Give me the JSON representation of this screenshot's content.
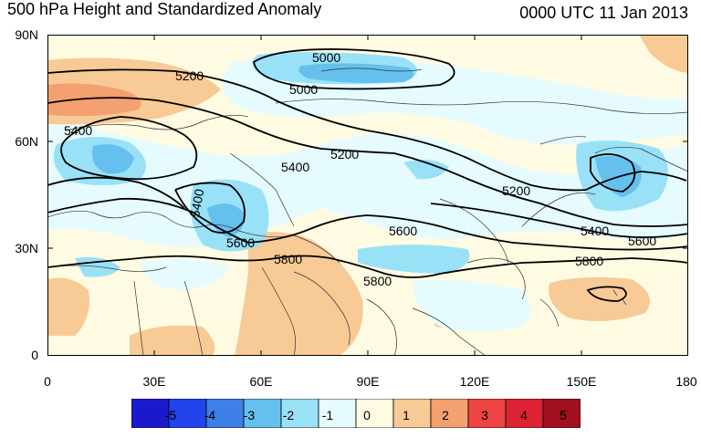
{
  "title_left": "500 hPa Height and Standardized Anomaly",
  "title_right": "0000 UTC 11 Jan 2013",
  "lat_labels": [
    "90N",
    "60N",
    "30N",
    "0"
  ],
  "lon_labels": [
    "0",
    "30E",
    "60E",
    "90E",
    "120E",
    "150E",
    "180"
  ],
  "contour_labels": [
    "5000",
    "5000",
    "5200",
    "5200",
    "5200",
    "5400",
    "5400",
    "5400",
    "5400",
    "5600",
    "5600",
    "5600",
    "5800",
    "5800",
    "5800"
  ],
  "colorbar": {
    "labels": [
      "-5",
      "-4",
      "-3",
      "-2",
      "-1",
      "0",
      "1",
      "2",
      "3",
      "4",
      "5"
    ],
    "colors": [
      "#1a1acc",
      "#2244ee",
      "#3f7fe8",
      "#66c0ee",
      "#99e1f7",
      "#e6fbfd",
      "#fffbe3",
      "#f8ca96",
      "#f5a070",
      "#ee4444",
      "#dd2233",
      "#a0101f"
    ]
  }
}
